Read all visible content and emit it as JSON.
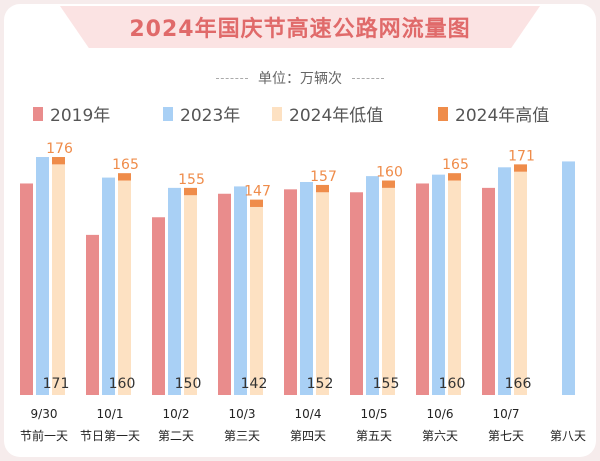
{
  "chart_data": {
    "type": "bar",
    "title": "2024年国庆节高速公路网流量图",
    "unit_label": "单位：万辆次",
    "legend": [
      {
        "name": "2019年",
        "color": "#e98c8c"
      },
      {
        "name": "2023年",
        "color": "#a9d0f5"
      },
      {
        "name": "2024年低值",
        "color": "#fde1c2"
      },
      {
        "name": "2024年高值",
        "color": "#ef8c4a"
      }
    ],
    "categories": [
      {
        "date": "9/30",
        "day": "节前一天"
      },
      {
        "date": "10/1",
        "day": "节日第一天"
      },
      {
        "date": "10/2",
        "day": "第二天"
      },
      {
        "date": "10/3",
        "day": "第三天"
      },
      {
        "date": "10/4",
        "day": "第四天"
      },
      {
        "date": "10/5",
        "day": "第五天"
      },
      {
        "date": "10/6",
        "day": "第六天"
      },
      {
        "date": "10/7",
        "day": "第七天"
      },
      {
        "date": "",
        "day": "第八天"
      }
    ],
    "series": [
      {
        "name": "2019年",
        "values": [
          158,
          123,
          135,
          151,
          154,
          152,
          158,
          155,
          null
        ]
      },
      {
        "name": "2023年",
        "values": [
          176,
          162,
          155,
          156,
          159,
          163,
          164,
          169,
          173
        ]
      },
      {
        "name": "2024年低值",
        "values": [
          171,
          160,
          150,
          142,
          152,
          155,
          160,
          166,
          null
        ]
      },
      {
        "name": "2024年高值",
        "values": [
          176,
          165,
          155,
          147,
          157,
          160,
          165,
          171,
          null
        ]
      }
    ],
    "ylim": [
      0,
      200
    ]
  }
}
